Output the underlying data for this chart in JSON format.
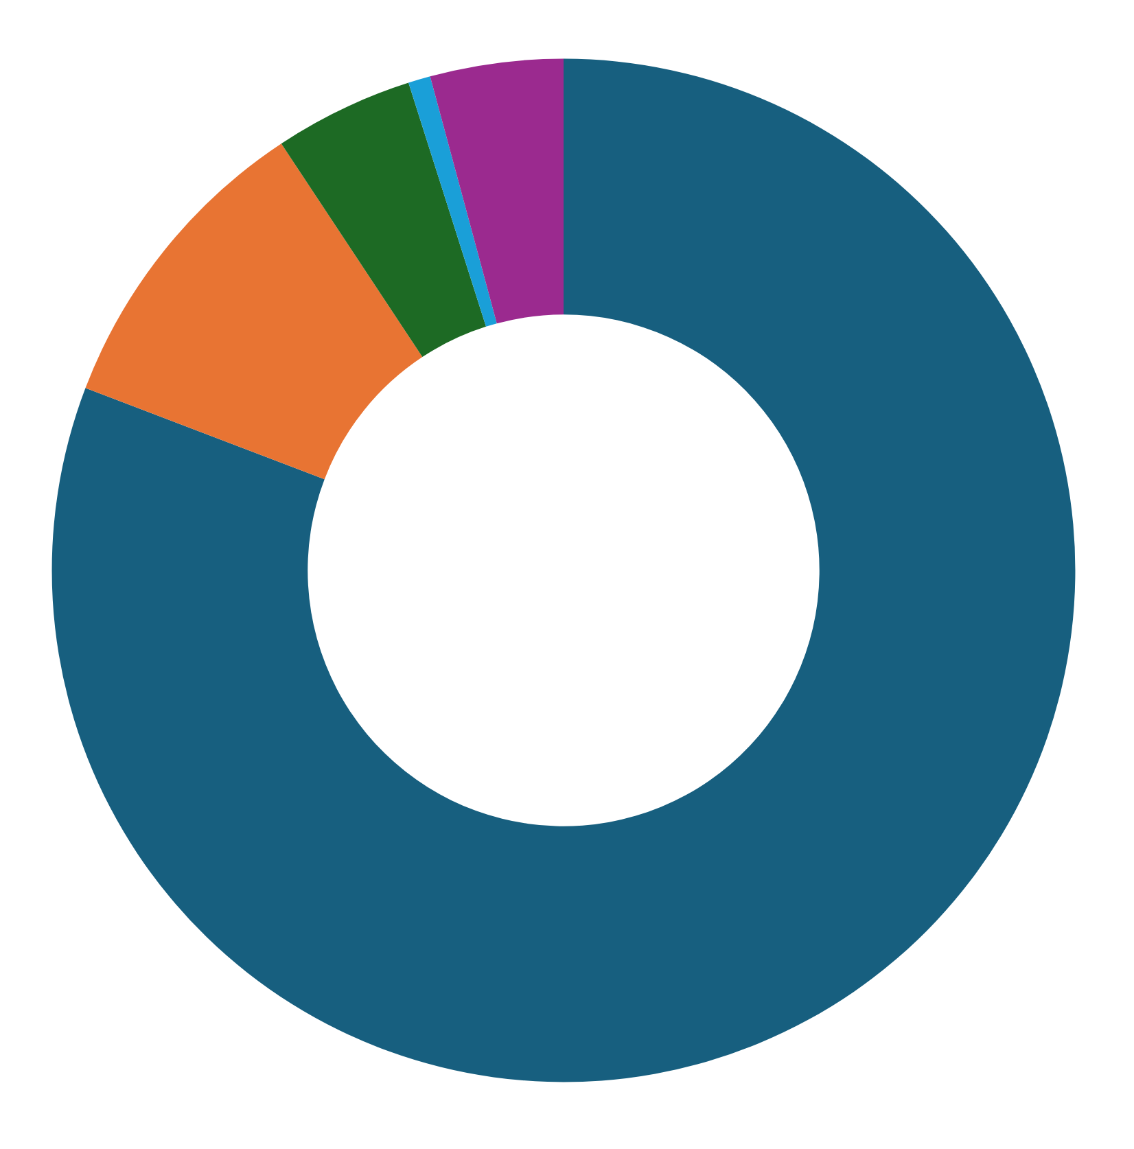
{
  "chart_data": {
    "type": "donut",
    "categories": [
      null,
      null,
      null,
      null,
      null
    ],
    "values": [
      80.8,
      9.9,
      4.4,
      0.7,
      4.2
    ],
    "colors": [
      "#175f7f",
      "#e87433",
      "#1d6a24",
      "#1a9fd8",
      "#9b2a8f"
    ]
  }
}
